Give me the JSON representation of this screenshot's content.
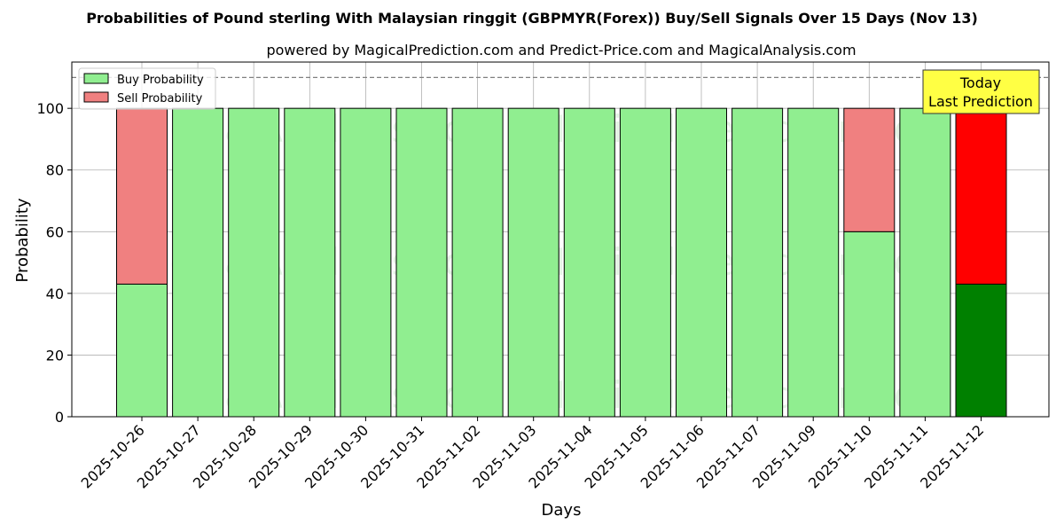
{
  "chart_data": {
    "type": "bar",
    "stacked": true,
    "title": "Probabilities of Pound sterling With Malaysian ringgit (GBPMYR(Forex)) Buy/Sell Signals Over 15 Days (Nov 13)",
    "subtitle": "powered by MagicalPrediction.com and Predict-Price.com and MagicalAnalysis.com",
    "xlabel": "Days",
    "ylabel": "Probability",
    "ylim": [
      0,
      115
    ],
    "yticks": [
      0,
      20,
      40,
      60,
      80,
      100
    ],
    "yticks_text": [
      "0",
      "20",
      "40",
      "60",
      "80",
      "100"
    ],
    "reference_line": 110,
    "grid": true,
    "legend_position": "top-left",
    "categories": [
      "2025-10-26",
      "2025-10-27",
      "2025-10-28",
      "2025-10-29",
      "2025-10-30",
      "2025-10-31",
      "2025-11-02",
      "2025-11-03",
      "2025-11-04",
      "2025-11-05",
      "2025-11-06",
      "2025-11-07",
      "2025-11-09",
      "2025-11-10",
      "2025-11-11",
      "2025-11-12"
    ],
    "series": [
      {
        "name": "Buy Probability",
        "color": "#90ee90",
        "values": [
          43,
          100,
          100,
          100,
          100,
          100,
          100,
          100,
          100,
          100,
          100,
          100,
          100,
          60,
          100,
          43
        ]
      },
      {
        "name": "Sell Probability",
        "color": "#f08080",
        "values": [
          57,
          0,
          0,
          0,
          0,
          0,
          0,
          0,
          0,
          0,
          0,
          0,
          0,
          40,
          0,
          57
        ]
      }
    ],
    "highlight": {
      "index": 15,
      "buy_color": "#008000",
      "sell_color": "#ff0000"
    },
    "annotation": {
      "lines": [
        "Today",
        "Last Prediction"
      ],
      "color": "#ffff44"
    },
    "watermarks": [
      "MagicalAnalysis.com",
      "MagicalPrediction.com"
    ]
  }
}
